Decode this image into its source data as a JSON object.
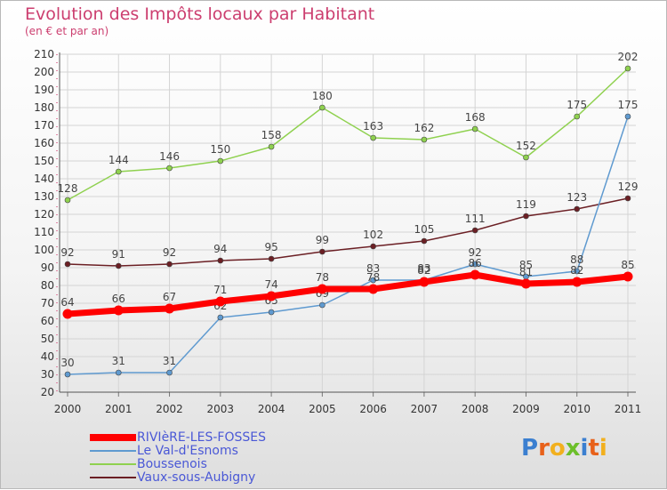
{
  "title": "Evolution des Impôts locaux par Habitant",
  "subtitle": "(en € et par an)",
  "chart_data": {
    "type": "line",
    "x": [
      "2000",
      "2001",
      "2002",
      "2003",
      "2004",
      "2005",
      "2006",
      "2007",
      "2008",
      "2009",
      "2010",
      "2011"
    ],
    "ylim": [
      20,
      210
    ],
    "yticks": [
      20,
      30,
      40,
      50,
      60,
      70,
      80,
      90,
      100,
      110,
      120,
      130,
      140,
      150,
      160,
      170,
      180,
      190,
      200,
      210
    ],
    "grid": true,
    "legend": "bottom-left",
    "series": [
      {
        "name": "Boussenois",
        "color": "#8fd14f",
        "values": [
          128,
          144,
          146,
          150,
          158,
          180,
          163,
          162,
          168,
          152,
          175,
          202
        ]
      },
      {
        "name": "Vaux-sous-Aubigny",
        "color": "#6b1f24",
        "values": [
          92,
          91,
          92,
          94,
          95,
          99,
          102,
          105,
          111,
          119,
          123,
          129
        ]
      },
      {
        "name": "Le Val-d'Esnoms",
        "color": "#5f9ad0",
        "values": [
          30,
          31,
          31,
          62,
          65,
          69,
          83,
          83,
          92,
          85,
          88,
          175
        ]
      },
      {
        "name": "RIVIèRE-LES-FOSSES",
        "color": "#ff0000",
        "values": [
          64,
          66,
          67,
          71,
          74,
          78,
          78,
          82,
          86,
          81,
          82,
          85
        ]
      }
    ]
  },
  "legend": [
    {
      "label": "RIVIèRE-LES-FOSSES",
      "color": "#ff0000"
    },
    {
      "label": "Le Val-d'Esnoms",
      "color": "#5f9ad0"
    },
    {
      "label": "Boussenois",
      "color": "#8fd14f"
    },
    {
      "label": "Vaux-sous-Aubigny",
      "color": "#6b1f24"
    }
  ],
  "logo": {
    "letters": [
      "P",
      "r",
      "o",
      "x",
      "i",
      "t",
      "i"
    ],
    "colors": [
      "#3b7fd0",
      "#e8611a",
      "#f2b01e",
      "#6cbf2a",
      "#3b7fd0",
      "#e8611a",
      "#f2b01e"
    ]
  }
}
